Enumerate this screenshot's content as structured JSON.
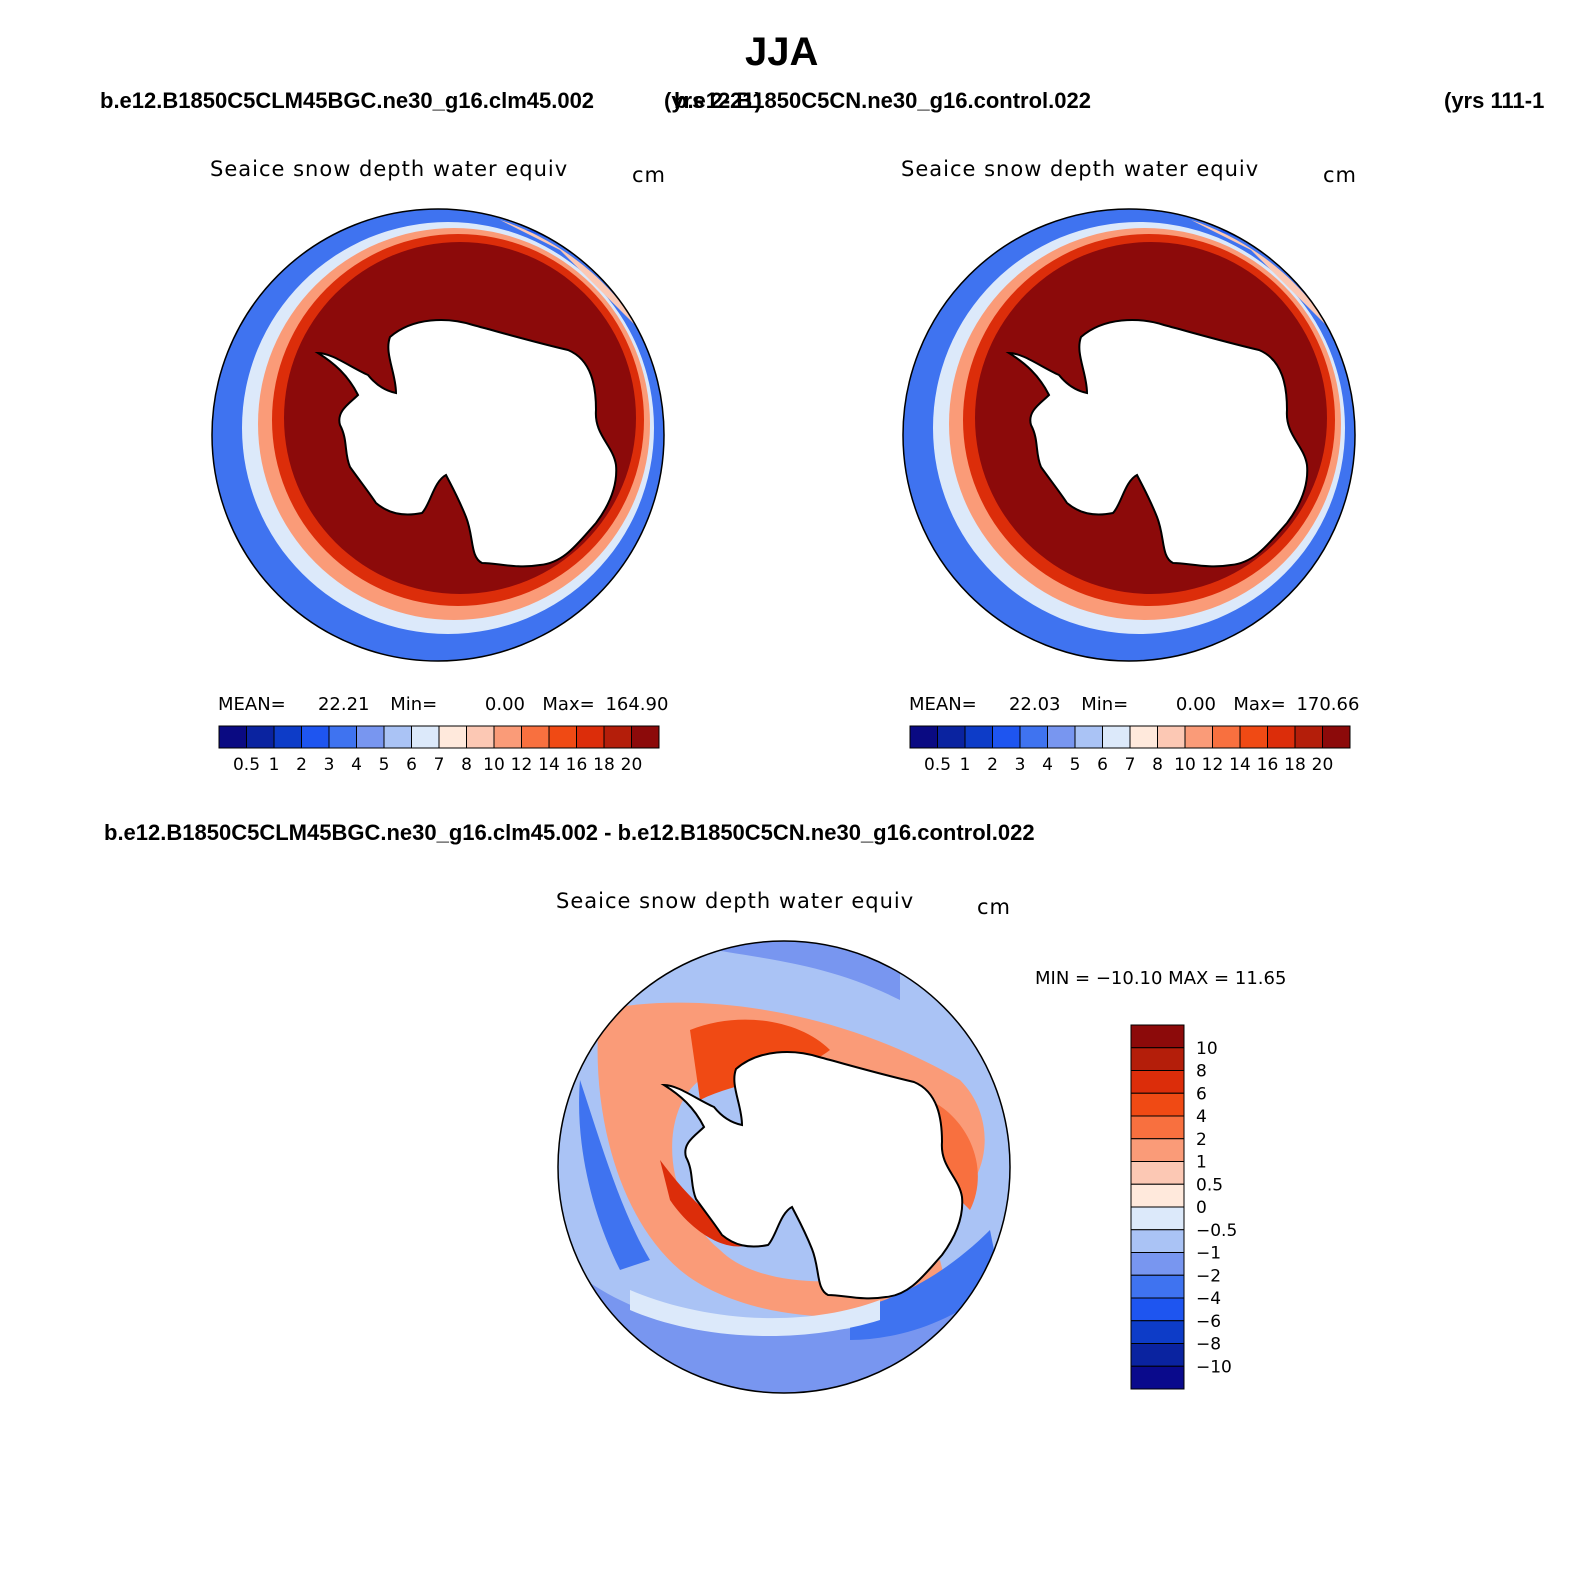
{
  "page": {
    "title": "JJA",
    "case_left": "b.e12.B1850C5CLM45BGC.ne30_g16.clm45.002",
    "years_left": "(yrs 2-21)",
    "case_right": "b.e12.B1850C5CN.ne30_g16.control.022",
    "years_right": "(yrs 111-1",
    "diff_title": "b.e12.B1850C5CLM45BGC.ne30_g16.clm45.002 - b.e12.B1850C5CN.ne30_g16.control.022"
  },
  "colors": {
    "abs_scale": [
      "#0a0a82",
      "#0a23a0",
      "#0d3cc8",
      "#1e55f0",
      "#3f73f0",
      "#7896f0",
      "#aac3f5",
      "#dce9fa",
      "#ffe9dc",
      "#fcc8b4",
      "#fa9b78",
      "#f8703f",
      "#f04a14",
      "#dc2d0a",
      "#b41e0a",
      "#8c0a0a"
    ],
    "diff_scale": [
      "#0a0a8c",
      "#0a23a0",
      "#0d3cc8",
      "#1e55f0",
      "#3f73f0",
      "#7896f0",
      "#aac3f5",
      "#dce9fa",
      "#ffe9dc",
      "#fcc8b4",
      "#fa9b78",
      "#f8703f",
      "#f04a14",
      "#dc2d0a",
      "#b41e0a",
      "#8c0a0a"
    ]
  },
  "chart_data": [
    {
      "type": "heatmap",
      "projection": "south polar stereographic",
      "title": "Seaice snow depth water equiv",
      "units": "cm",
      "stats": {
        "mean_label": "MEAN=",
        "mean": "22.21",
        "min_label": "Min=",
        "min": "0.00",
        "max_label": "Max=",
        "max": "164.90"
      },
      "colorbar_levels": [
        "0.5",
        "1",
        "2",
        "3",
        "4",
        "5",
        "6",
        "7",
        "8",
        "10",
        "12",
        "14",
        "16",
        "18",
        "20"
      ]
    },
    {
      "type": "heatmap",
      "projection": "south polar stereographic",
      "title": "Seaice snow depth water equiv",
      "units": "cm",
      "stats": {
        "mean_label": "MEAN=",
        "mean": "22.03",
        "min_label": "Min=",
        "min": "0.00",
        "max_label": "Max=",
        "max": "170.66"
      },
      "colorbar_levels": [
        "0.5",
        "1",
        "2",
        "3",
        "4",
        "5",
        "6",
        "7",
        "8",
        "10",
        "12",
        "14",
        "16",
        "18",
        "20"
      ]
    },
    {
      "type": "heatmap",
      "projection": "south polar stereographic",
      "title": "Seaice snow depth water equiv",
      "units": "cm",
      "minmax_text": "MIN = −10.10 MAX =   11.65",
      "min": -10.1,
      "max": 11.65,
      "colorbar_levels": [
        "10",
        "8",
        "6",
        "4",
        "2",
        "1",
        "0.5",
        "0",
        "−0.5",
        "−1",
        "−2",
        "−4",
        "−6",
        "−8",
        "−10"
      ]
    }
  ]
}
